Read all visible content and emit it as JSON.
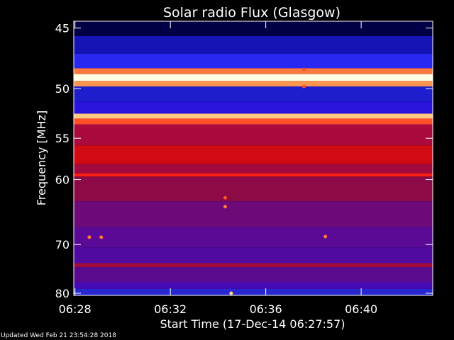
{
  "chart_data": {
    "type": "heatmap",
    "title": "Solar radio Flux (Glasgow)",
    "xlabel": "Start Time (17-Dec-14 06:27:57)",
    "ylabel": "Frequency [MHz]",
    "x_ticks": [
      "06:28",
      "06:32",
      "06:36",
      "06:40"
    ],
    "x_tick_minutes": [
      28,
      32,
      36,
      40
    ],
    "xlim_minutes": [
      27.95,
      43.0
    ],
    "y_ticks": [
      45,
      50,
      55,
      60,
      70,
      80
    ],
    "ylim_mhz": [
      44.5,
      80.5
    ],
    "y_scale": "reciprocal",
    "colormap": [
      "#000064",
      "#1e1ec8",
      "#3232ff",
      "#500aaa",
      "#6e0a8c",
      "#8c0a50",
      "#b4003c",
      "#dc0a14",
      "#ff3c14",
      "#ffb46e",
      "#ffffe6"
    ],
    "bands": [
      {
        "from_mhz": 44.5,
        "to_mhz": 45.6,
        "color": "#000046"
      },
      {
        "from_mhz": 45.6,
        "to_mhz": 47.0,
        "color": "#1414b4"
      },
      {
        "from_mhz": 47.0,
        "to_mhz": 48.2,
        "color": "#2828f0"
      },
      {
        "from_mhz": 48.2,
        "to_mhz": 48.7,
        "color": "#ff7840"
      },
      {
        "from_mhz": 48.7,
        "to_mhz": 49.3,
        "color": "#ffffe6"
      },
      {
        "from_mhz": 49.3,
        "to_mhz": 49.8,
        "color": "#ff9650"
      },
      {
        "from_mhz": 49.8,
        "to_mhz": 51.2,
        "color": "#1e1ecd"
      },
      {
        "from_mhz": 51.2,
        "to_mhz": 52.4,
        "color": "#2814dc"
      },
      {
        "from_mhz": 52.4,
        "to_mhz": 52.9,
        "color": "#ffc882"
      },
      {
        "from_mhz": 52.9,
        "to_mhz": 53.5,
        "color": "#ff5028"
      },
      {
        "from_mhz": 53.5,
        "to_mhz": 55.8,
        "color": "#aa0a3c"
      },
      {
        "from_mhz": 55.8,
        "to_mhz": 58.0,
        "color": "#d20a14"
      },
      {
        "from_mhz": 58.0,
        "to_mhz": 59.2,
        "color": "#a00a3c"
      },
      {
        "from_mhz": 59.2,
        "to_mhz": 59.6,
        "color": "#ff1e14"
      },
      {
        "from_mhz": 59.6,
        "to_mhz": 63.0,
        "color": "#8c0a46"
      },
      {
        "from_mhz": 63.0,
        "to_mhz": 67.0,
        "color": "#6e0a78"
      },
      {
        "from_mhz": 67.0,
        "to_mhz": 70.5,
        "color": "#5a0a96"
      },
      {
        "from_mhz": 70.5,
        "to_mhz": 73.5,
        "color": "#500aa0"
      },
      {
        "from_mhz": 73.5,
        "to_mhz": 74.3,
        "color": "#a00a3c"
      },
      {
        "from_mhz": 74.3,
        "to_mhz": 77.5,
        "color": "#5a0a8c"
      },
      {
        "from_mhz": 77.5,
        "to_mhz": 79.0,
        "color": "#460ab4"
      },
      {
        "from_mhz": 79.0,
        "to_mhz": 80.5,
        "color": "#2828d2"
      }
    ],
    "bursts": [
      {
        "minute": 34.3,
        "mhz": 62.5,
        "color": "#ff5028"
      },
      {
        "minute": 34.3,
        "mhz": 63.8,
        "color": "#ff7840"
      },
      {
        "minute": 34.55,
        "mhz": 80.0,
        "color": "#ffdc78"
      },
      {
        "minute": 37.6,
        "mhz": 48.3,
        "color": "#ff5028"
      },
      {
        "minute": 37.6,
        "mhz": 49.8,
        "color": "#ff5028"
      },
      {
        "minute": 28.6,
        "mhz": 68.7,
        "color": "#ff7840"
      },
      {
        "minute": 29.1,
        "mhz": 68.7,
        "color": "#ff7840"
      },
      {
        "minute": 38.5,
        "mhz": 68.6,
        "color": "#ff7840"
      }
    ]
  },
  "footer": {
    "updated": "Updated Wed Feb 21 23:54:28 2018"
  }
}
